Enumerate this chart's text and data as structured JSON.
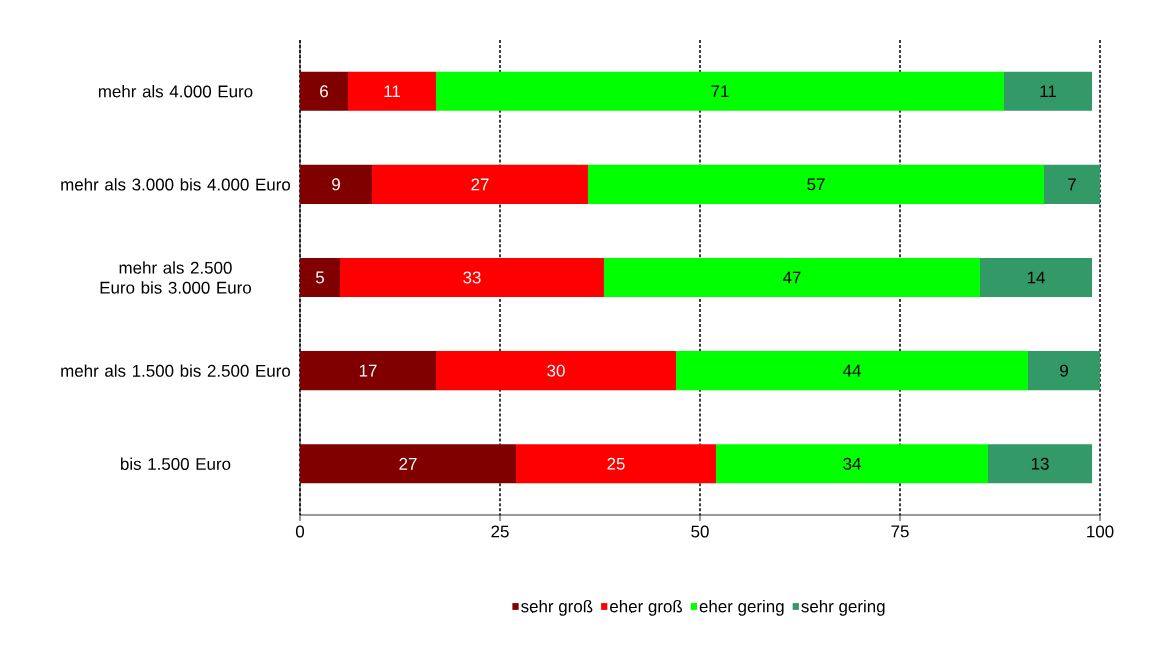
{
  "chart_data": {
    "type": "bar",
    "orientation": "horizontal",
    "stacked": true,
    "categories": [
      "mehr als 4.000 Euro",
      "mehr als 3.000 bis 4.000 Euro",
      "mehr als 2.500 Euro bis 3.000 Euro",
      "mehr als 1.500 bis 2.500 Euro",
      "bis 1.500 Euro"
    ],
    "series": [
      {
        "name": "sehr groß",
        "color": "#800000",
        "values": [
          6,
          9,
          5,
          17,
          27
        ]
      },
      {
        "name": "eher groß",
        "color": "#ff0000",
        "values": [
          11,
          27,
          33,
          30,
          25
        ]
      },
      {
        "name": "eher gering",
        "color": "#00ff00",
        "values": [
          71,
          57,
          47,
          44,
          34
        ]
      },
      {
        "name": "sehr gering",
        "color": "#339966",
        "values": [
          11,
          7,
          14,
          9,
          13
        ]
      }
    ],
    "xlim": [
      0,
      100
    ],
    "xticks": [
      0,
      25,
      50,
      75,
      100
    ],
    "grid": "x",
    "legend": "bottom",
    "data_labels": true
  }
}
